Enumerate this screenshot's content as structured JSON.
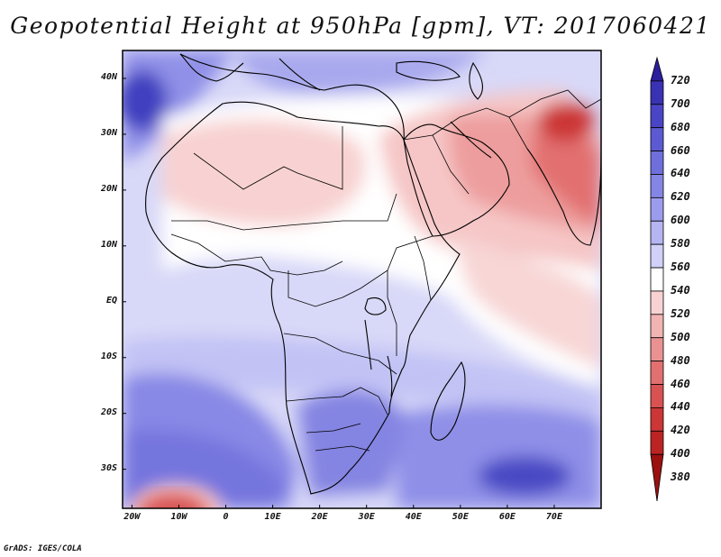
{
  "title": "Geopotential Height at 950hPa [gpm], VT: 2017060421",
  "credit": "GrADS: IGES/COLA",
  "map": {
    "region": "Africa and Middle East",
    "lat_range": [
      -37,
      45
    ],
    "lon_range": [
      -22,
      80
    ],
    "lat_labels": [
      {
        "lat": 40,
        "label": "40N"
      },
      {
        "lat": 30,
        "label": "30N"
      },
      {
        "lat": 20,
        "label": "20N"
      },
      {
        "lat": 10,
        "label": "10N"
      },
      {
        "lat": 0,
        "label": "EQ"
      },
      {
        "lat": -10,
        "label": "10S"
      },
      {
        "lat": -20,
        "label": "20S"
      },
      {
        "lat": -30,
        "label": "30S"
      }
    ],
    "lon_labels": [
      {
        "lon": -20,
        "label": "20W"
      },
      {
        "lon": -10,
        "label": "10W"
      },
      {
        "lon": 0,
        "label": "0"
      },
      {
        "lon": 10,
        "label": "10E"
      },
      {
        "lon": 20,
        "label": "20E"
      },
      {
        "lon": 30,
        "label": "30E"
      },
      {
        "lon": 40,
        "label": "40E"
      },
      {
        "lon": 50,
        "label": "50E"
      },
      {
        "lon": 60,
        "label": "60E"
      },
      {
        "lon": 70,
        "label": "70E"
      }
    ]
  },
  "colorbar": {
    "levels": [
      "720",
      "700",
      "680",
      "660",
      "640",
      "620",
      "600",
      "580",
      "560",
      "540",
      "520",
      "500",
      "480",
      "460",
      "440",
      "420",
      "400",
      "380"
    ],
    "colors": [
      "#2c1f9c",
      "#3a32b4",
      "#4a45c6",
      "#5c5ad2",
      "#6f6fdc",
      "#8585e6",
      "#9c9cee",
      "#b5b5f3",
      "#d0d0f8",
      "#ffffff",
      "#f8d2d2",
      "#f2b3b3",
      "#ea9292",
      "#e27070",
      "#d85252",
      "#cc3636",
      "#bc2424",
      "#9c1010"
    ]
  }
}
